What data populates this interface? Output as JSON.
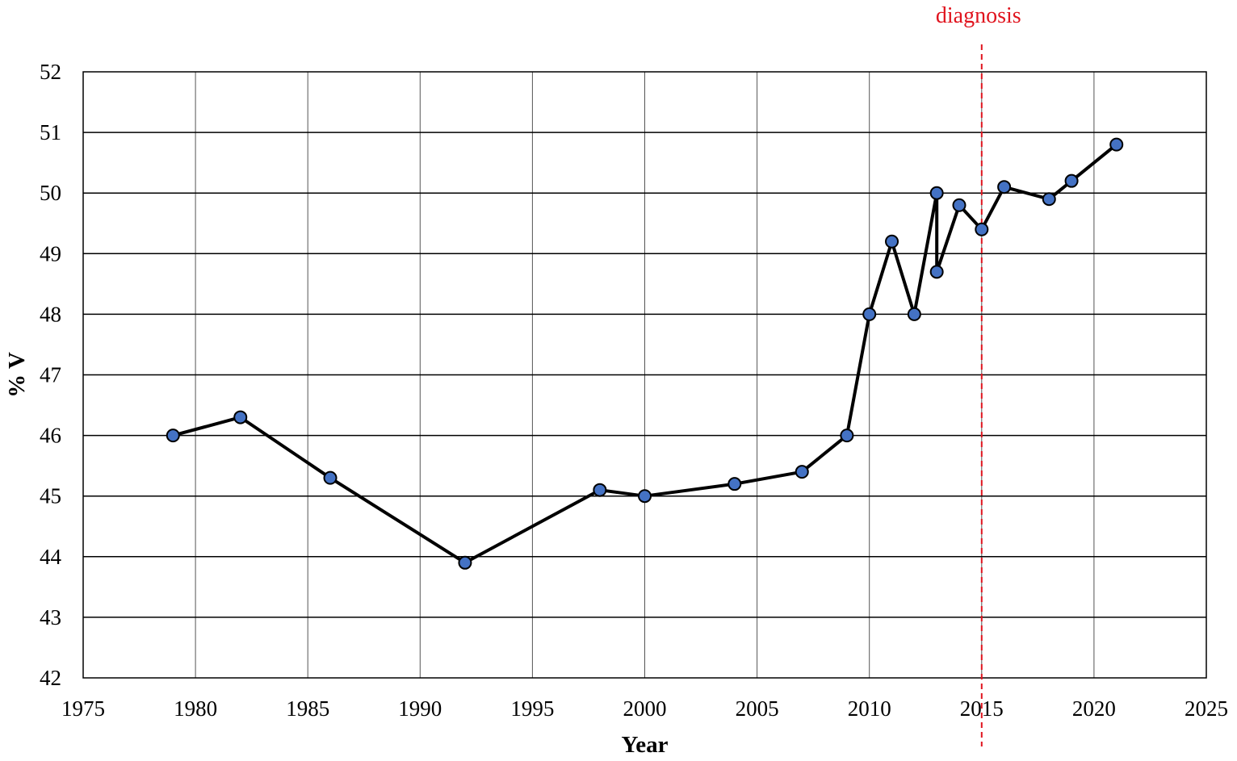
{
  "chart_data": {
    "type": "scatter",
    "title": "",
    "xlabel": "Year",
    "ylabel": "% V",
    "xlim": [
      1975,
      2025
    ],
    "ylim": [
      42,
      52
    ],
    "x_ticks": [
      1975,
      1980,
      1985,
      1990,
      1995,
      2000,
      2005,
      2010,
      2015,
      2020,
      2025
    ],
    "y_ticks": [
      42,
      43,
      44,
      45,
      46,
      47,
      48,
      49,
      50,
      51,
      52
    ],
    "grid": true,
    "legend": "none",
    "series": [
      {
        "points": [
          [
            1979,
            46.0
          ],
          [
            1982,
            46.3
          ],
          [
            1986,
            45.3
          ],
          [
            1992,
            43.9
          ],
          [
            1998,
            45.1
          ],
          [
            2000,
            45.0
          ],
          [
            2004,
            45.2
          ],
          [
            2007,
            45.4
          ],
          [
            2009,
            46.0
          ],
          [
            2010,
            48.0
          ],
          [
            2011,
            49.2
          ],
          [
            2012,
            48.0
          ],
          [
            2013,
            50.0
          ],
          [
            2013,
            48.7
          ],
          [
            2014,
            49.8
          ],
          [
            2015,
            49.4
          ],
          [
            2016,
            50.1
          ],
          [
            2018,
            49.9
          ],
          [
            2019,
            50.2
          ],
          [
            2021,
            50.8
          ]
        ],
        "line_color": "#000000",
        "marker_color": "#4472c4",
        "marker_edge_color": "#000000",
        "connected": true
      }
    ],
    "annotations": [
      {
        "text": "diagnosis",
        "x": 2015,
        "style": "dashed-vertical-line",
        "color": "#e0141e"
      }
    ]
  }
}
